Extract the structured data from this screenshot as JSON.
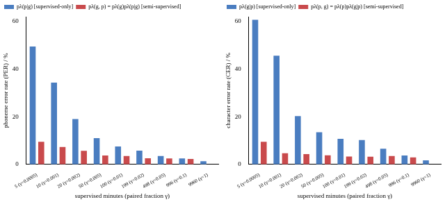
{
  "chart_data": [
    {
      "type": "bar",
      "x_label": "supervised minutes (paired fraction γ)",
      "y_label": "phoneme error rate (PER) / %",
      "categories": [
        "5 (γ=0.0005)",
        "10 (γ=0.001)",
        "20 (γ=0.002)",
        "50 (γ=0.005)",
        "100 (γ=0.01)",
        "199 (γ=0.02)",
        "498 (γ=0.05)",
        "996 (γ=0.1)",
        "9960 (γ=1)"
      ],
      "series": [
        {
          "name": "pλ(p|g) [supervised-only]",
          "color": "#4a7dc0",
          "values": [
            49.5,
            34.3,
            19.0,
            11.0,
            7.5,
            5.8,
            3.5,
            2.5,
            1.3
          ]
        },
        {
          "name": "pλ(g, p) = pλ(g)pλ(p|g) [semi-supervised]",
          "color": "#c94a4c",
          "values": [
            9.5,
            7.3,
            5.7,
            3.7,
            3.5,
            2.6,
            2.5,
            2.3,
            null
          ]
        }
      ],
      "ylim": [
        0,
        62
      ],
      "yticks": [
        0,
        20,
        40,
        60
      ],
      "grid": false,
      "legend": "top"
    },
    {
      "type": "bar",
      "x_label": "supervised minutes (paired fraction γ)",
      "y_label": "character error rate (CER) / %",
      "categories": [
        "5 (γ=0.0005)",
        "10 (γ=0.001)",
        "20 (γ=0.002)",
        "50 (γ=0.005)",
        "100 (γ=0.01)",
        "199 (γ=0.02)",
        "498 (γ=0.05)",
        "996 (γ=0.1)",
        "9960 (γ=1)"
      ],
      "series": [
        {
          "name": "pλ(g|p) [supervised-only]",
          "color": "#4a7dc0",
          "values": [
            60.7,
            45.6,
            20.3,
            13.5,
            10.7,
            10.2,
            6.6,
            3.7,
            1.7
          ]
        },
        {
          "name": "pλ(p, g) = pλ(p)pλ(g|p) [semi-supervised]",
          "color": "#c94a4c",
          "values": [
            9.5,
            4.7,
            4.3,
            3.8,
            3.3,
            3.2,
            3.5,
            2.9,
            null
          ]
        }
      ],
      "ylim": [
        0,
        62
      ],
      "yticks": [
        0,
        20,
        40,
        60
      ],
      "grid": false,
      "legend": "top"
    }
  ]
}
